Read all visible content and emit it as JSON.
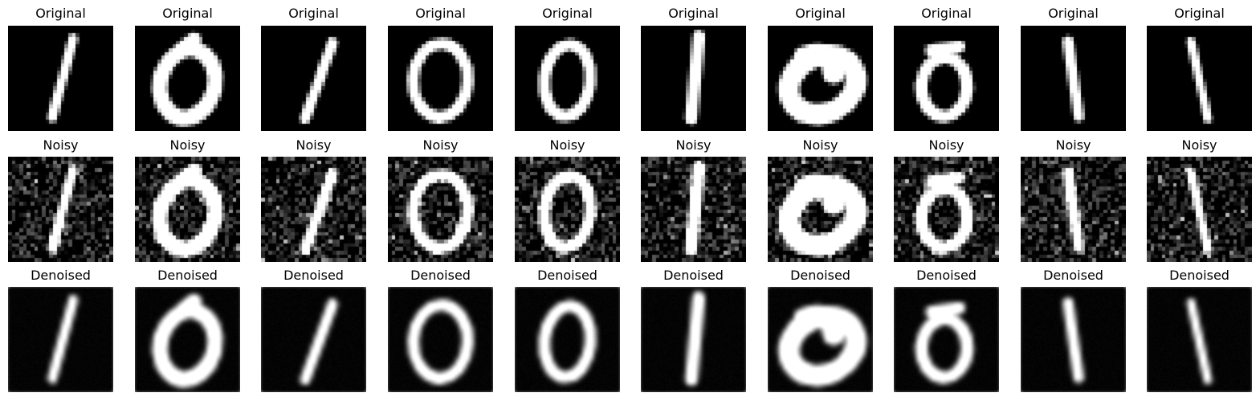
{
  "row_titles": [
    "Original",
    "Noisy",
    "Denoised"
  ],
  "background_color": "#000000",
  "stroke_color": "#ffffff",
  "digits": [
    "1",
    "0",
    "1",
    "0",
    "0",
    "1",
    "0",
    "0",
    "1",
    "1"
  ],
  "panels": [
    {
      "digit": "1",
      "shape": "line",
      "p1": [
        0.62,
        0.12
      ],
      "p2": [
        0.42,
        0.87
      ],
      "thickness": 0.09
    },
    {
      "digit": "0",
      "shape": "oval",
      "center": [
        0.5,
        0.55
      ],
      "radii": [
        0.26,
        0.33
      ],
      "tilt": 0.25,
      "thickness": 0.15,
      "extra": "topnub"
    },
    {
      "digit": "1",
      "shape": "line",
      "p1": [
        0.68,
        0.16
      ],
      "p2": [
        0.42,
        0.88
      ],
      "thickness": 0.1
    },
    {
      "digit": "0",
      "shape": "oval",
      "center": [
        0.5,
        0.52
      ],
      "radii": [
        0.26,
        0.35
      ],
      "tilt": 0.05,
      "thickness": 0.11
    },
    {
      "digit": "0",
      "shape": "oval",
      "center": [
        0.5,
        0.52
      ],
      "radii": [
        0.22,
        0.34
      ],
      "tilt": 0.1,
      "thickness": 0.11
    },
    {
      "digit": "1",
      "shape": "line",
      "p1": [
        0.55,
        0.1
      ],
      "p2": [
        0.48,
        0.88
      ],
      "thickness": 0.12
    },
    {
      "digit": "0",
      "shape": "oval",
      "center": [
        0.52,
        0.56
      ],
      "radii": [
        0.33,
        0.27
      ],
      "tilt": -0.45,
      "thickness": 0.2,
      "extra": "curl"
    },
    {
      "digit": "0",
      "shape": "oval",
      "center": [
        0.48,
        0.58
      ],
      "radii": [
        0.22,
        0.28
      ],
      "tilt": 0.05,
      "thickness": 0.12,
      "extra": "topbar"
    },
    {
      "digit": "1",
      "shape": "line",
      "p1": [
        0.45,
        0.15
      ],
      "p2": [
        0.55,
        0.86
      ],
      "thickness": 0.1
    },
    {
      "digit": "1",
      "shape": "line",
      "p1": [
        0.42,
        0.15
      ],
      "p2": [
        0.58,
        0.88
      ],
      "thickness": 0.08
    }
  ],
  "noise_level": 0.22,
  "denoise_blur": 1.1
}
